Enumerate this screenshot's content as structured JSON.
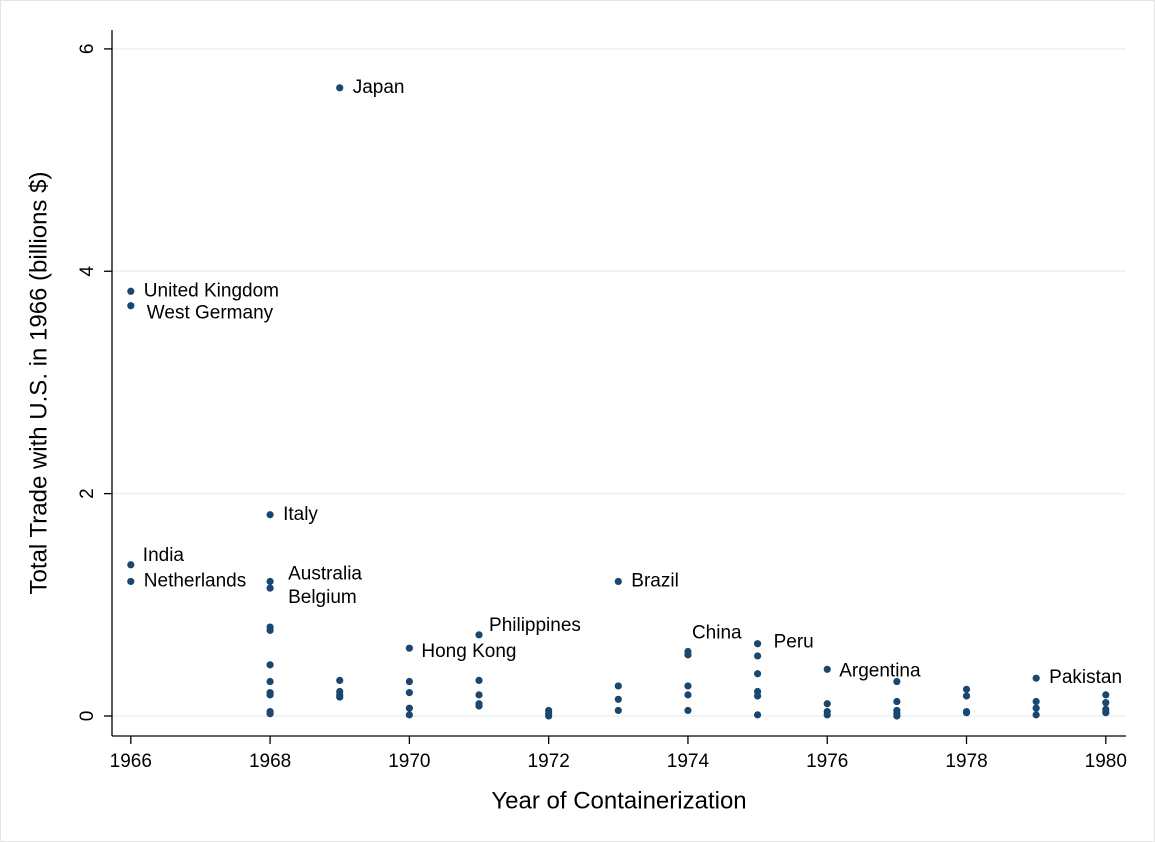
{
  "chart_data": {
    "type": "scatter",
    "x_label": "Year of Containerization",
    "y_label": "Total Trade with U.S. in 1966 (billions $)",
    "color": "#1a476f",
    "grid": true,
    "xlim": [
      1965.73,
      1980.29
    ],
    "ylim": [
      -0.18,
      6.17
    ],
    "xticks": [
      1966,
      1968,
      1970,
      1972,
      1974,
      1976,
      1978,
      1980
    ],
    "yticks": [
      0,
      2,
      4,
      6
    ],
    "x": [
      1966,
      1966,
      1966,
      1966,
      1968,
      1968,
      1968,
      1968,
      1968,
      1968,
      1968,
      1968,
      1968,
      1968,
      1968,
      1969,
      1969,
      1969,
      1969,
      1969,
      1970,
      1970,
      1970,
      1970,
      1970,
      1971,
      1971,
      1971,
      1971,
      1971,
      1972,
      1972,
      1972,
      1973,
      1973,
      1973,
      1973,
      1974,
      1974,
      1974,
      1974,
      1974,
      1975,
      1975,
      1975,
      1975,
      1975,
      1975,
      1976,
      1976,
      1976,
      1976,
      1977,
      1977,
      1977,
      1977,
      1977,
      1978,
      1978,
      1978,
      1978,
      1979,
      1979,
      1979,
      1979,
      1980,
      1980,
      1980,
      1980
    ],
    "values": [
      3.82,
      3.69,
      1.36,
      1.21,
      1.81,
      1.21,
      1.15,
      0.8,
      0.77,
      0.46,
      0.31,
      0.21,
      0.19,
      0.04,
      0.02,
      5.65,
      0.32,
      0.22,
      0.19,
      0.17,
      0.61,
      0.31,
      0.21,
      0.07,
      0.01,
      0.73,
      0.32,
      0.19,
      0.11,
      0.09,
      0.05,
      0.02,
      0.0,
      1.21,
      0.27,
      0.15,
      0.05,
      0.58,
      0.55,
      0.27,
      0.19,
      0.05,
      0.65,
      0.54,
      0.38,
      0.22,
      0.18,
      0.01,
      0.42,
      0.11,
      0.04,
      0.01,
      0.31,
      0.13,
      0.05,
      0.02,
      0.0,
      0.24,
      0.18,
      0.04,
      0.03,
      0.34,
      0.13,
      0.07,
      0.01,
      0.19,
      0.12,
      0.06,
      0.03
    ],
    "point_labels": [
      "United Kingdom",
      "West Germany",
      "India",
      "Netherlands",
      "Italy",
      "Australia",
      "Belgium",
      null,
      null,
      null,
      null,
      null,
      null,
      null,
      null,
      "Japan",
      null,
      null,
      null,
      null,
      "Hong Kong",
      null,
      null,
      null,
      null,
      "Philippines",
      null,
      null,
      null,
      null,
      null,
      null,
      null,
      "Brazil",
      null,
      null,
      null,
      "China",
      null,
      null,
      null,
      null,
      "Peru",
      null,
      null,
      null,
      null,
      null,
      "Argentina",
      null,
      null,
      null,
      null,
      null,
      null,
      null,
      null,
      null,
      null,
      null,
      null,
      "Pakistan",
      null,
      null,
      null,
      null,
      null,
      null,
      null
    ]
  }
}
